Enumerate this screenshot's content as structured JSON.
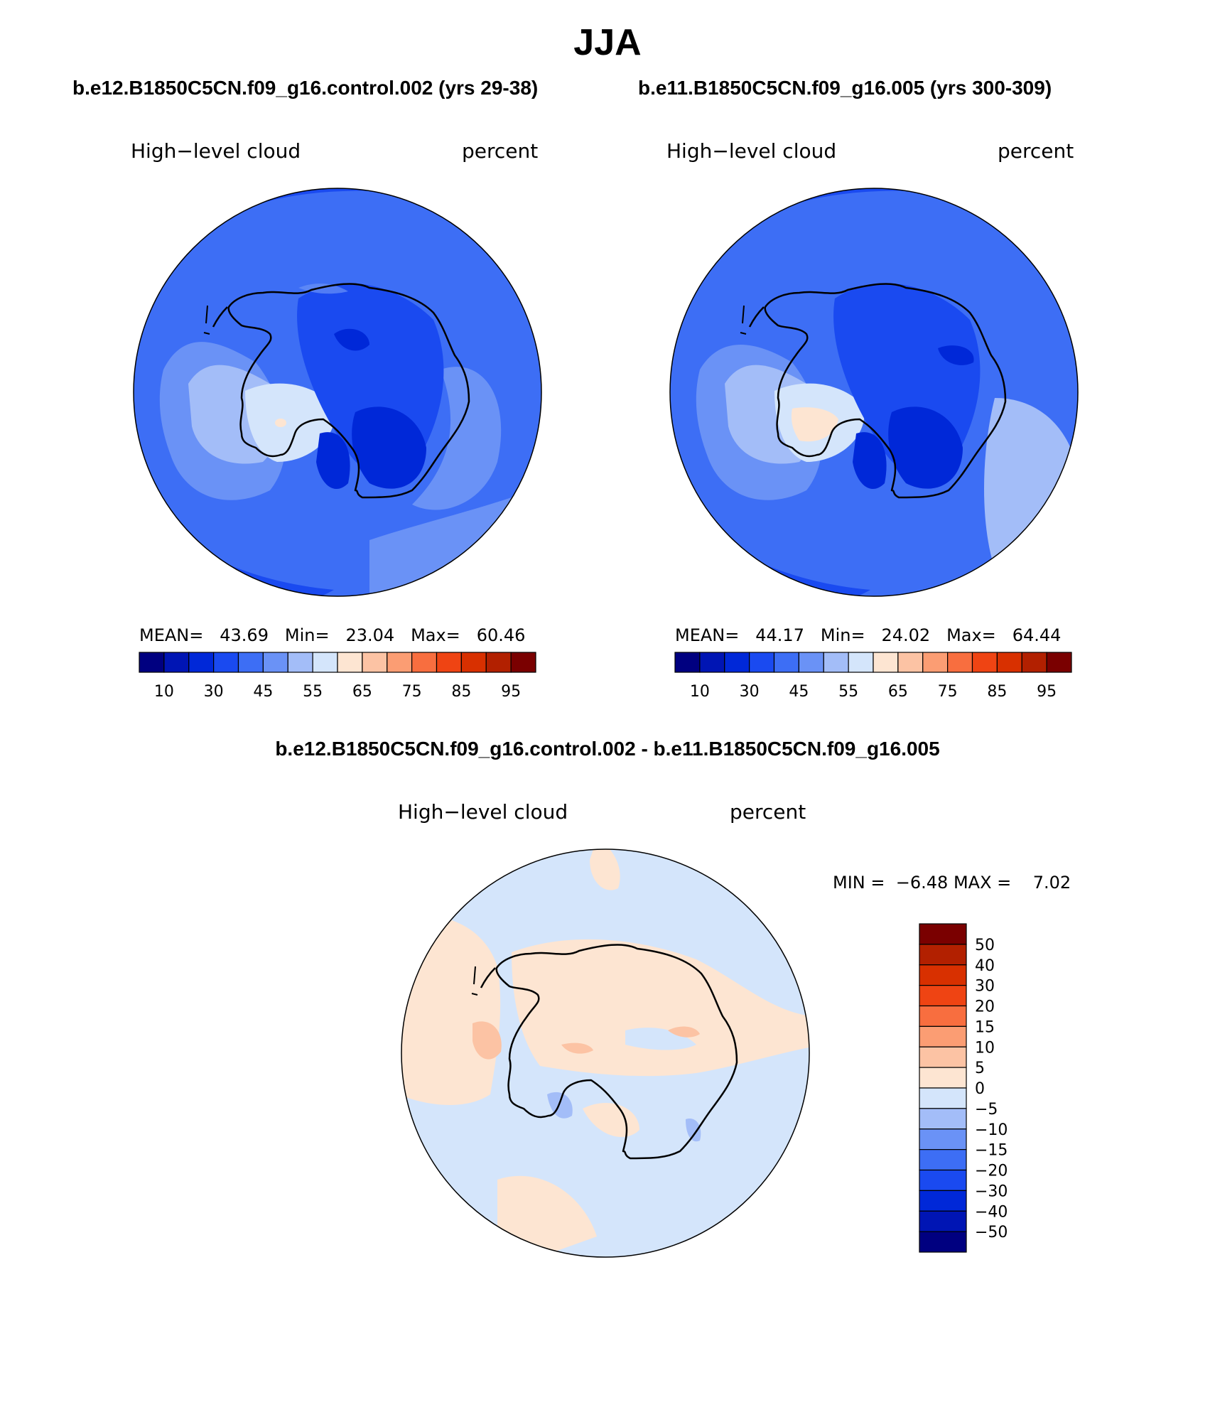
{
  "figure": {
    "season": "JJA",
    "case1": "b.e12.B1850C5CN.f09_g16.control.002 (yrs 29-38)",
    "case2": "b.e11.B1850C5CN.f09_g16.005 (yrs 300-309)",
    "diff_title": "b.e12.B1850C5CN.f09_g16.control.002 - b.e11.B1850C5CN.f09_g16.005"
  },
  "chart_data": [
    {
      "type": "heatmap",
      "projection": "south polar stereographic",
      "title": "b.e12.B1850C5CN.f09_g16.control.002 (yrs 29-38)",
      "left_label": "High−level cloud",
      "right_label": "percent",
      "stats": {
        "mean_label": "MEAN=",
        "mean": "43.69",
        "min_label": "Min=",
        "min": "23.04",
        "max_label": "Max=",
        "max": "60.46"
      },
      "colorbar": {
        "orientation": "horizontal",
        "tick_labels": [
          "10",
          "30",
          "45",
          "55",
          "65",
          "75",
          "85",
          "95"
        ],
        "colors": [
          "#000080",
          "#0015b4",
          "#0028d8",
          "#1a4af0",
          "#3d6ef5",
          "#6a92f6",
          "#a3bdf8",
          "#d4e5fb",
          "#fde5d2",
          "#fcc3a4",
          "#fb9d73",
          "#f86e3f",
          "#ef4413",
          "#d83000",
          "#b22000",
          "#7a0000"
        ]
      },
      "field_range": [
        23.04,
        60.46
      ]
    },
    {
      "type": "heatmap",
      "projection": "south polar stereographic",
      "title": "b.e11.B1850C5CN.f09_g16.005 (yrs 300-309)",
      "left_label": "High−level cloud",
      "right_label": "percent",
      "stats": {
        "mean_label": "MEAN=",
        "mean": "44.17",
        "min_label": "Min=",
        "min": "24.02",
        "max_label": "Max=",
        "max": "64.44"
      },
      "colorbar": {
        "orientation": "horizontal",
        "tick_labels": [
          "10",
          "30",
          "45",
          "55",
          "65",
          "75",
          "85",
          "95"
        ],
        "colors": [
          "#000080",
          "#0015b4",
          "#0028d8",
          "#1a4af0",
          "#3d6ef5",
          "#6a92f6",
          "#a3bdf8",
          "#d4e5fb",
          "#fde5d2",
          "#fcc3a4",
          "#fb9d73",
          "#f86e3f",
          "#ef4413",
          "#d83000",
          "#b22000",
          "#7a0000"
        ]
      },
      "field_range": [
        24.02,
        64.44
      ]
    },
    {
      "type": "heatmap",
      "projection": "south polar stereographic",
      "title": "b.e12.B1850C5CN.f09_g16.control.002 - b.e11.B1850C5CN.f09_g16.005",
      "left_label": "High−level cloud",
      "right_label": "percent",
      "stats": {
        "min_label": "MIN =",
        "min": "−6.48",
        "max_label": "MAX =",
        "max": "7.02"
      },
      "colorbar": {
        "orientation": "vertical",
        "tick_labels": [
          "50",
          "40",
          "30",
          "20",
          "15",
          "10",
          "5",
          "0",
          "−5",
          "−10",
          "−15",
          "−20",
          "−30",
          "−40",
          "−50"
        ],
        "colors": [
          "#7a0000",
          "#b22000",
          "#d83000",
          "#ef4413",
          "#f86e3f",
          "#fb9d73",
          "#fcc3a4",
          "#fde5d2",
          "#d4e5fb",
          "#a3bdf8",
          "#6a92f6",
          "#3d6ef5",
          "#1a4af0",
          "#0028d8",
          "#0015b4",
          "#000080"
        ]
      },
      "field_range": [
        -6.48,
        7.02
      ]
    }
  ]
}
